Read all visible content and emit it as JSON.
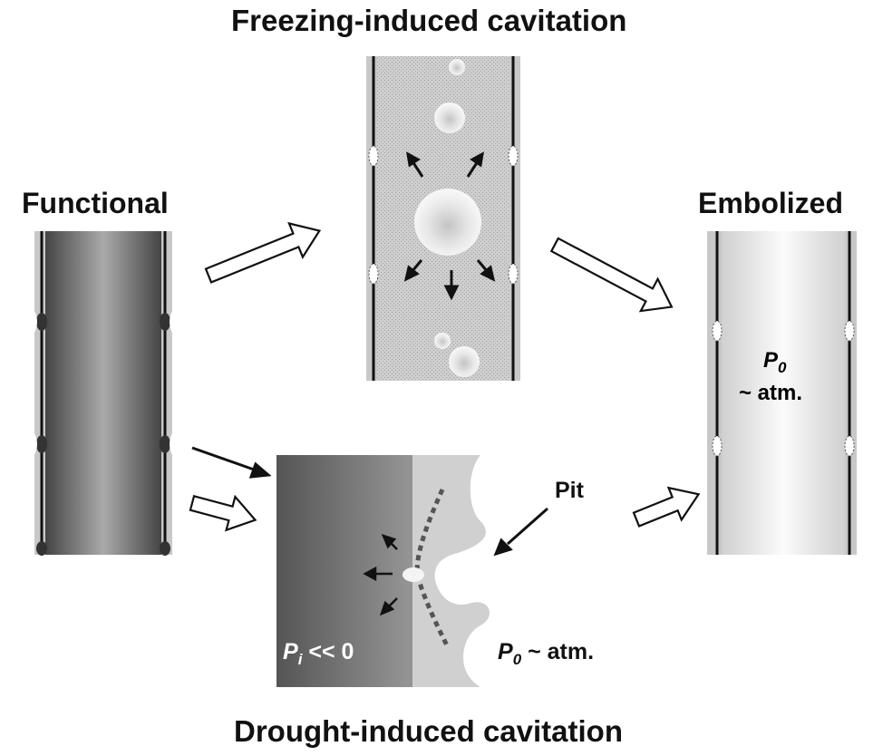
{
  "titles": {
    "top": "Freezing-induced cavitation",
    "bottom": "Drought-induced cavitation"
  },
  "states": {
    "functional": "Functional",
    "embolized": "Embolized"
  },
  "embolized_pressure": {
    "symbol": "P",
    "subscript": "0",
    "value": "~ atm."
  },
  "drought_panel": {
    "pit_label": "Pit",
    "inner_pressure": {
      "symbol": "P",
      "subscript": "i",
      "relation": " << 0"
    },
    "outer_pressure": {
      "symbol": "P",
      "subscript": "0",
      "relation": " ~ atm."
    }
  },
  "colors": {
    "wall": "#c8c8c8",
    "wall_line": "#111111",
    "functional_dark": "#4a4a4a",
    "functional_light": "#a8a8a8",
    "drought_dark": "#5a5a5a",
    "drought_light": "#bdbdbd",
    "pit_membrane": "#555555"
  }
}
